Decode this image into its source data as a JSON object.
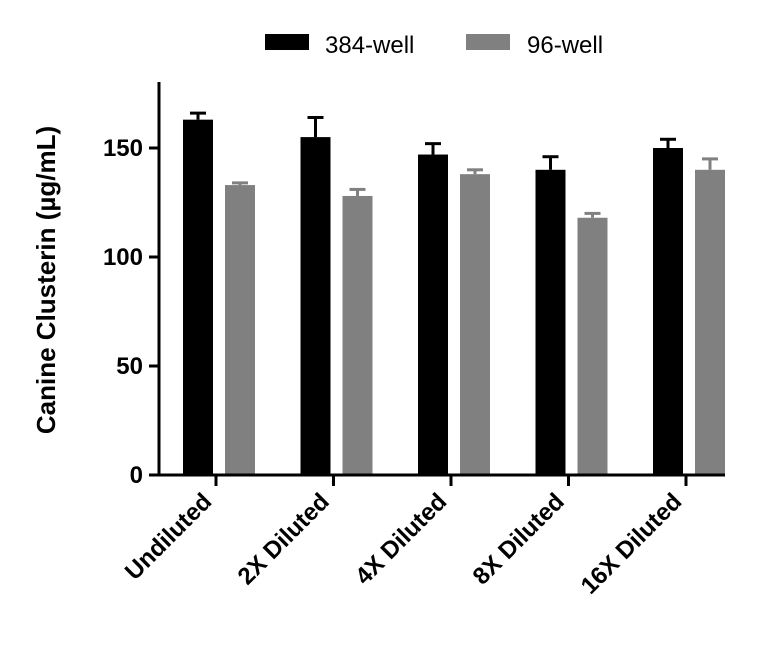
{
  "chart_data": {
    "type": "bar",
    "title": "",
    "xlabel": "",
    "ylabel": "Canine Clusterin (µg/mL)",
    "ylim": [
      0,
      180
    ],
    "yticks": [
      0,
      50,
      100,
      150
    ],
    "categories": [
      "Undiluted",
      "2X Diluted",
      "4X Diluted",
      "8X Diluted",
      "16X Diluted"
    ],
    "series": [
      {
        "name": "384-well",
        "color": "#000000",
        "values": [
          163,
          155,
          147,
          140,
          150
        ],
        "errors": [
          3,
          9,
          5,
          6,
          4
        ]
      },
      {
        "name": "96-well",
        "color": "#808080",
        "values": [
          133,
          128,
          138,
          118,
          140
        ],
        "errors": [
          1,
          3,
          2,
          2,
          5
        ]
      }
    ],
    "legend_position": "top-center",
    "grid": false
  }
}
